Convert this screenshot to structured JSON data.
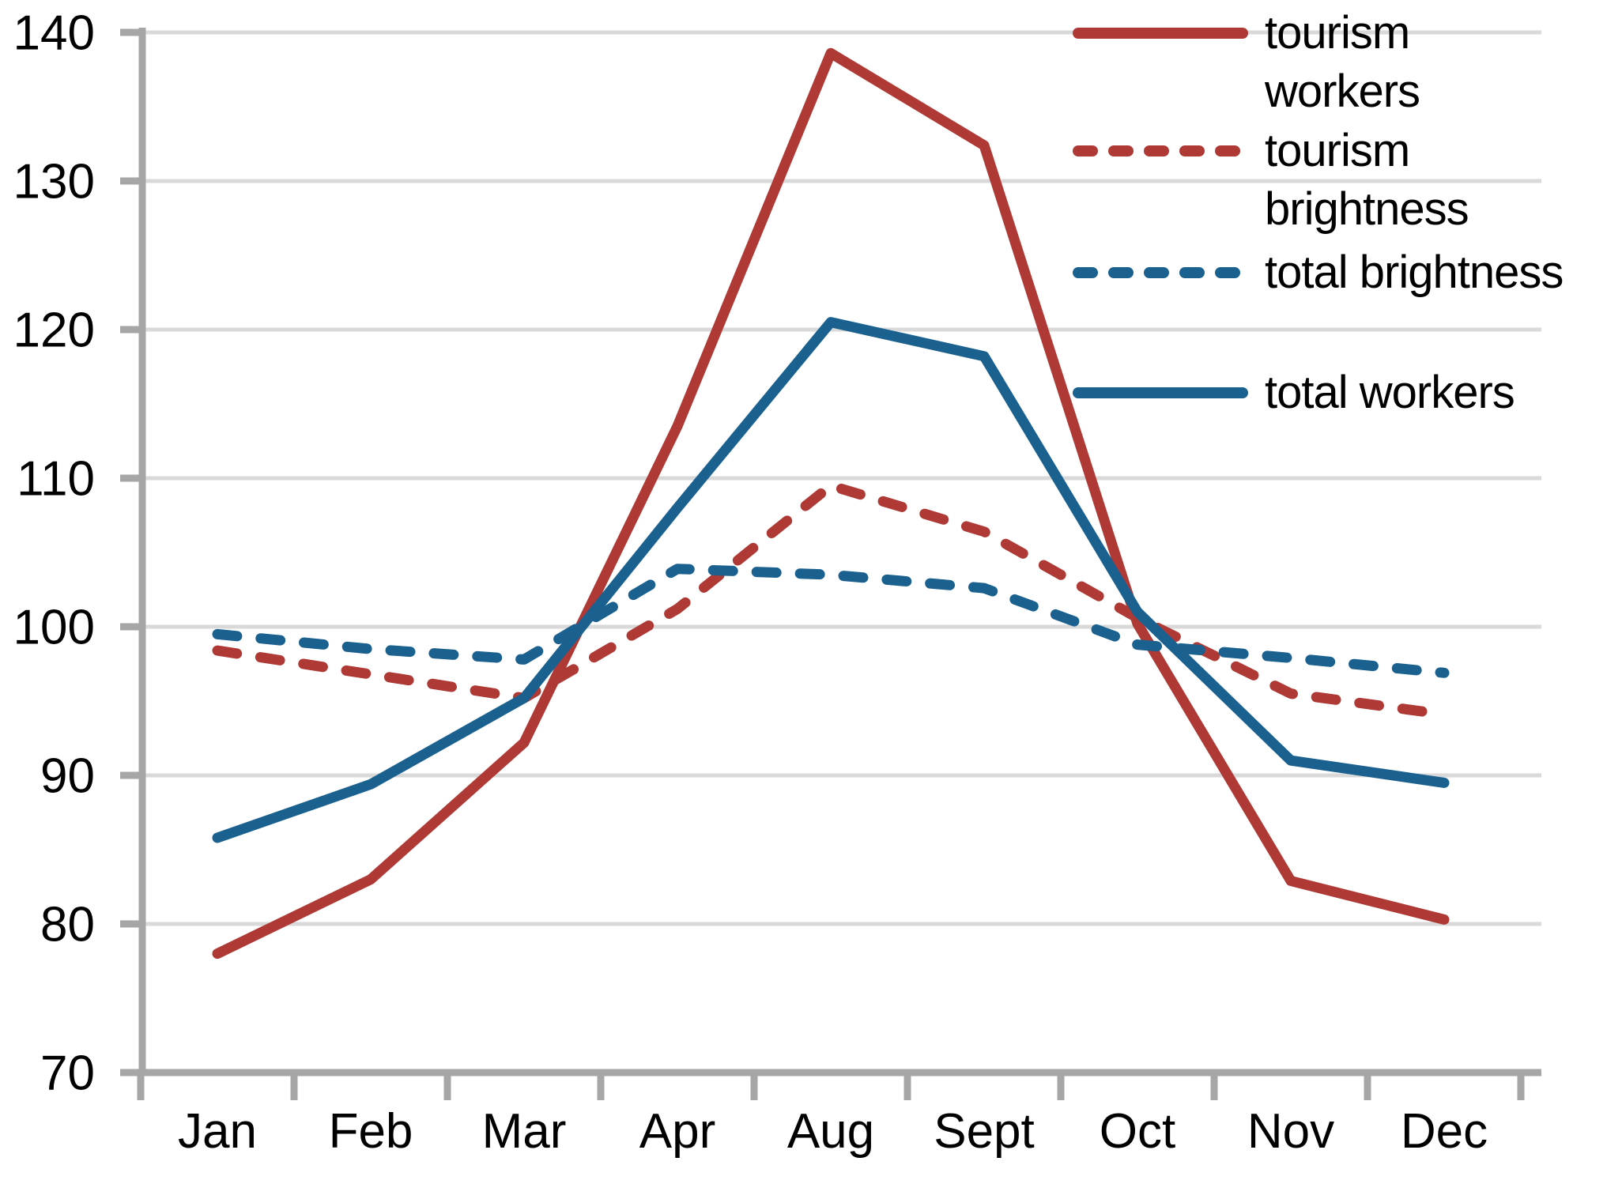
{
  "chart_data": {
    "type": "line",
    "title": "",
    "xlabel": "",
    "ylabel": "",
    "categories": [
      "Jan",
      "Feb",
      "Mar",
      "Apr",
      "Aug",
      "Sept",
      "Oct",
      "Nov",
      "Dec"
    ],
    "series": [
      {
        "name": "tourism workers",
        "style": "solid",
        "color": "#AF3935",
        "values": [
          78.0,
          83.0,
          92.2,
          113.5,
          138.6,
          132.4,
          100.2,
          82.9,
          80.3
        ]
      },
      {
        "name": "tourism brightness",
        "style": "dashed",
        "color": "#AF3935",
        "values": [
          98.4,
          96.8,
          95.2,
          101.2,
          109.5,
          106.4,
          100.6,
          95.5,
          94.1
        ]
      },
      {
        "name": "total brightness",
        "style": "dashed",
        "color": "#1A6190",
        "values": [
          99.5,
          98.5,
          97.8,
          103.9,
          103.5,
          102.6,
          98.8,
          97.9,
          96.9
        ]
      },
      {
        "name": "total workers",
        "style": "solid",
        "color": "#1A6190",
        "values": [
          85.8,
          89.4,
          95.2,
          108.0,
          120.5,
          118.2,
          101.0,
          91.0,
          89.5
        ]
      }
    ],
    "ylim": [
      70,
      140
    ],
    "ytick_step": 10,
    "ytick_labels": [
      "70",
      "80",
      "90",
      "100",
      "110",
      "120",
      "130",
      "140"
    ],
    "grid": true,
    "gridline_color": "#D9D9D9",
    "axis_color": "#A6A6A6",
    "legend_position": "right",
    "legend": [
      {
        "lines": [
          "tourism",
          "workers"
        ],
        "style": "solid",
        "color": "#AF3935"
      },
      {
        "lines": [
          "tourism",
          "brightness"
        ],
        "style": "dashed",
        "color": "#AF3935"
      },
      {
        "lines": [
          "total brightness"
        ],
        "style": "dashed",
        "color": "#1A6190"
      },
      {
        "lines": [
          "total workers"
        ],
        "style": "solid",
        "color": "#1A6190"
      }
    ]
  }
}
